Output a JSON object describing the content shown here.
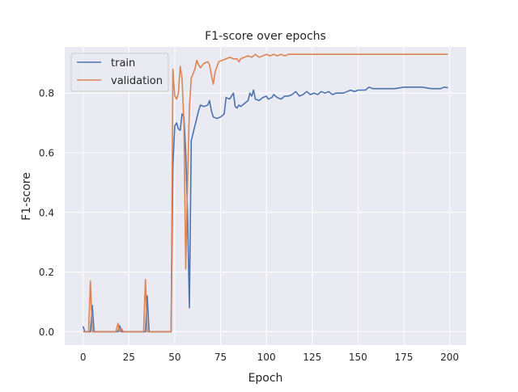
{
  "chart_data": {
    "type": "line",
    "title": "F1-score over epochs",
    "xlabel": "Epoch",
    "ylabel": "F1-score",
    "xlim": [
      -10,
      209
    ],
    "ylim": [
      -0.045,
      0.955
    ],
    "xticks": [
      0,
      25,
      50,
      75,
      100,
      125,
      150,
      175,
      200
    ],
    "yticks": [
      0.0,
      0.2,
      0.4,
      0.6,
      0.8
    ],
    "ytick_labels": [
      "0.0",
      "0.2",
      "0.4",
      "0.6",
      "0.8"
    ],
    "grid": true,
    "legend_position": "top-left",
    "background": "#eaeaf2",
    "series": [
      {
        "name": "train",
        "color": "#4c72b0",
        "points": [
          [
            0,
            0.018
          ],
          [
            1,
            0.0
          ],
          [
            3,
            0.0
          ],
          [
            4,
            0.0
          ],
          [
            5,
            0.088
          ],
          [
            6,
            0.0
          ],
          [
            10,
            0.0
          ],
          [
            19,
            0.0
          ],
          [
            20,
            0.02
          ],
          [
            21,
            0.0
          ],
          [
            34,
            0.0
          ],
          [
            35,
            0.12
          ],
          [
            36,
            0.0
          ],
          [
            48,
            0.0
          ],
          [
            49,
            0.55
          ],
          [
            50,
            0.69
          ],
          [
            51,
            0.7
          ],
          [
            52,
            0.68
          ],
          [
            53,
            0.675
          ],
          [
            54,
            0.73
          ],
          [
            55,
            0.72
          ],
          [
            56,
            0.6
          ],
          [
            57,
            0.4
          ],
          [
            58,
            0.08
          ],
          [
            59,
            0.64
          ],
          [
            61,
            0.69
          ],
          [
            63,
            0.74
          ],
          [
            64,
            0.76
          ],
          [
            66,
            0.755
          ],
          [
            68,
            0.76
          ],
          [
            69,
            0.775
          ],
          [
            70,
            0.74
          ],
          [
            71,
            0.72
          ],
          [
            73,
            0.715
          ],
          [
            75,
            0.72
          ],
          [
            77,
            0.73
          ],
          [
            78,
            0.785
          ],
          [
            80,
            0.78
          ],
          [
            82,
            0.8
          ],
          [
            83,
            0.755
          ],
          [
            84,
            0.75
          ],
          [
            85,
            0.76
          ],
          [
            86,
            0.755
          ],
          [
            88,
            0.765
          ],
          [
            90,
            0.775
          ],
          [
            91,
            0.8
          ],
          [
            92,
            0.79
          ],
          [
            93,
            0.81
          ],
          [
            94,
            0.78
          ],
          [
            96,
            0.775
          ],
          [
            98,
            0.785
          ],
          [
            100,
            0.79
          ],
          [
            101,
            0.78
          ],
          [
            103,
            0.785
          ],
          [
            104,
            0.795
          ],
          [
            106,
            0.785
          ],
          [
            108,
            0.78
          ],
          [
            110,
            0.79
          ],
          [
            112,
            0.79
          ],
          [
            114,
            0.795
          ],
          [
            116,
            0.805
          ],
          [
            118,
            0.79
          ],
          [
            120,
            0.795
          ],
          [
            122,
            0.805
          ],
          [
            124,
            0.795
          ],
          [
            126,
            0.8
          ],
          [
            128,
            0.795
          ],
          [
            130,
            0.805
          ],
          [
            132,
            0.8
          ],
          [
            134,
            0.805
          ],
          [
            136,
            0.795
          ],
          [
            138,
            0.8
          ],
          [
            140,
            0.8
          ],
          [
            142,
            0.8
          ],
          [
            144,
            0.805
          ],
          [
            146,
            0.81
          ],
          [
            148,
            0.805
          ],
          [
            150,
            0.81
          ],
          [
            152,
            0.81
          ],
          [
            154,
            0.81
          ],
          [
            156,
            0.82
          ],
          [
            158,
            0.815
          ],
          [
            160,
            0.815
          ],
          [
            165,
            0.815
          ],
          [
            170,
            0.815
          ],
          [
            175,
            0.82
          ],
          [
            180,
            0.82
          ],
          [
            185,
            0.82
          ],
          [
            190,
            0.815
          ],
          [
            195,
            0.815
          ],
          [
            197,
            0.82
          ],
          [
            199,
            0.818
          ]
        ]
      },
      {
        "name": "validation",
        "color": "#dd8452",
        "points": [
          [
            0,
            0.0
          ],
          [
            2,
            0.0
          ],
          [
            3,
            0.0
          ],
          [
            4,
            0.17
          ],
          [
            5,
            0.0
          ],
          [
            10,
            0.0
          ],
          [
            18,
            0.0
          ],
          [
            19,
            0.028
          ],
          [
            20,
            0.0
          ],
          [
            21,
            0.01
          ],
          [
            22,
            0.0
          ],
          [
            33,
            0.0
          ],
          [
            34,
            0.175
          ],
          [
            35,
            0.0
          ],
          [
            48,
            0.0
          ],
          [
            49,
            0.88
          ],
          [
            50,
            0.79
          ],
          [
            51,
            0.78
          ],
          [
            52,
            0.8
          ],
          [
            53,
            0.89
          ],
          [
            54,
            0.85
          ],
          [
            55,
            0.7
          ],
          [
            56,
            0.21
          ],
          [
            57,
            0.5
          ],
          [
            58,
            0.75
          ],
          [
            59,
            0.85
          ],
          [
            61,
            0.88
          ],
          [
            62,
            0.91
          ],
          [
            63,
            0.895
          ],
          [
            64,
            0.885
          ],
          [
            66,
            0.9
          ],
          [
            68,
            0.905
          ],
          [
            69,
            0.895
          ],
          [
            70,
            0.86
          ],
          [
            71,
            0.83
          ],
          [
            72,
            0.87
          ],
          [
            74,
            0.905
          ],
          [
            76,
            0.91
          ],
          [
            78,
            0.915
          ],
          [
            80,
            0.92
          ],
          [
            82,
            0.915
          ],
          [
            84,
            0.915
          ],
          [
            85,
            0.905
          ],
          [
            86,
            0.915
          ],
          [
            88,
            0.92
          ],
          [
            90,
            0.925
          ],
          [
            92,
            0.92
          ],
          [
            94,
            0.93
          ],
          [
            96,
            0.92
          ],
          [
            98,
            0.925
          ],
          [
            100,
            0.93
          ],
          [
            102,
            0.925
          ],
          [
            104,
            0.93
          ],
          [
            106,
            0.925
          ],
          [
            108,
            0.93
          ],
          [
            110,
            0.925
          ],
          [
            112,
            0.93
          ],
          [
            120,
            0.93
          ],
          [
            130,
            0.93
          ],
          [
            140,
            0.93
          ],
          [
            150,
            0.93
          ],
          [
            160,
            0.93
          ],
          [
            170,
            0.93
          ],
          [
            180,
            0.93
          ],
          [
            190,
            0.93
          ],
          [
            199,
            0.93
          ]
        ]
      }
    ]
  }
}
